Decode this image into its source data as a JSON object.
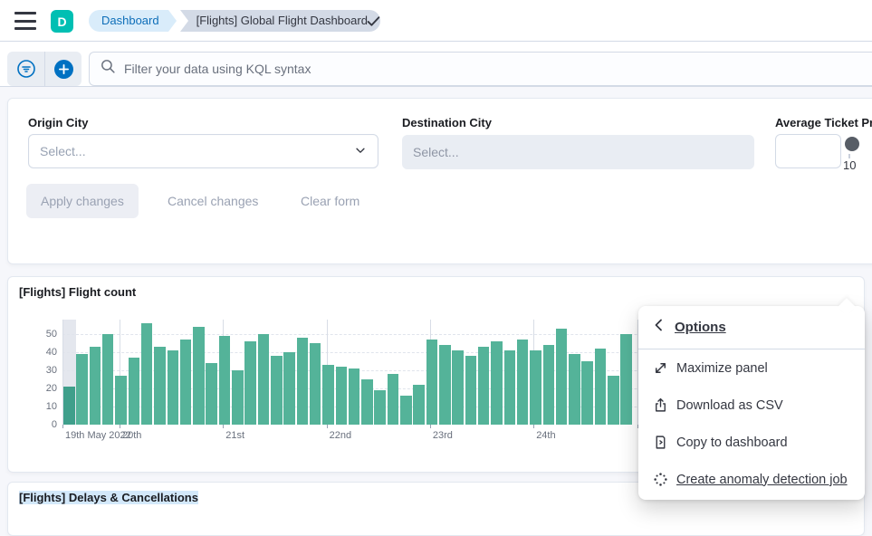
{
  "colors": {
    "brand_teal": "#00bfb3",
    "primary_blue": "#0071c2",
    "bar_green": "#54b399",
    "partial_bar_green": "#3f9f8b",
    "panel_border": "#d3dae6",
    "page_bg": "#f6f7fb",
    "text_dark": "#343741"
  },
  "header": {
    "logo_letter": "D",
    "breadcrumbs": [
      {
        "label": "Dashboard"
      },
      {
        "label": "[Flights] Global Flight Dashboard"
      }
    ],
    "icons": [
      "menu-icon",
      "check-icon"
    ]
  },
  "query_bar": {
    "placeholder": "Filter your data using KQL syntax",
    "icons": [
      "filter-circle-icon",
      "add-filter-icon",
      "search-icon"
    ]
  },
  "controls": {
    "origin": {
      "label": "Origin City",
      "value": "Select..."
    },
    "destination": {
      "label": "Destination City",
      "value": "Select..."
    },
    "price": {
      "label": "Average Ticket Price",
      "input_value": "",
      "slider_min_label": "10"
    },
    "apply_label": "Apply changes",
    "cancel_label": "Cancel changes",
    "clear_label": "Clear form"
  },
  "flight_panel": {
    "title": "[Flights] Flight count"
  },
  "chart_data": {
    "type": "bar",
    "title": "[Flights] Flight count",
    "xlabel": "",
    "ylabel": "",
    "y_ticks": [
      0,
      10,
      20,
      30,
      40,
      50
    ],
    "ylim": [
      0,
      58
    ],
    "x_tick_labels": [
      "19th\nMay\n2022",
      "20th",
      "21st",
      "22nd",
      "23rd",
      "24th",
      ""
    ],
    "grid": "horizontal-dashed, vertical-solid-per-day",
    "bucket_interval": "3h",
    "values": [
      21,
      39,
      43,
      50,
      27,
      37,
      56,
      43,
      41,
      47,
      54,
      34,
      49,
      30,
      46,
      50,
      38,
      40,
      48,
      45,
      33,
      32,
      31,
      25,
      19,
      28,
      16,
      22,
      47,
      44,
      41,
      38,
      43,
      46,
      41,
      47,
      41,
      44,
      53,
      39,
      35,
      42,
      27,
      50
    ],
    "partial_bucket_index": 0,
    "bar_color": "#54b399",
    "partial_bar_color": "#3f9f8b"
  },
  "menu": {
    "title": "Options",
    "items": [
      {
        "label": "Maximize panel",
        "icon": "maximize-icon",
        "underlined": false
      },
      {
        "label": "Download as CSV",
        "icon": "download-icon",
        "underlined": false
      },
      {
        "label": "Copy to dashboard",
        "icon": "copy-icon",
        "underlined": false
      },
      {
        "label": "Create anomaly detection job",
        "icon": "ml-icon",
        "underlined": true
      }
    ]
  },
  "bottom_panel": {
    "title": "[Flights] Delays & Cancellations"
  }
}
